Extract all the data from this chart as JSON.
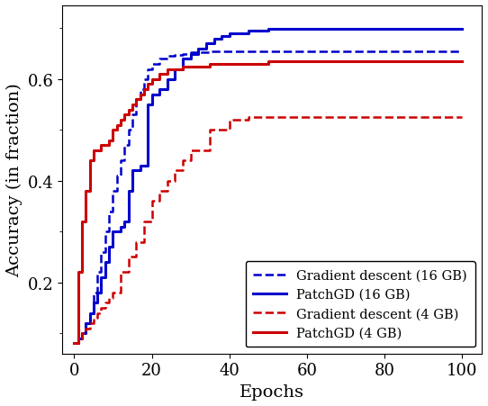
{
  "title": "",
  "xlabel": "Epochs",
  "ylabel": "Accuracy (in fraction)",
  "xlim": [
    -3,
    105
  ],
  "ylim": [
    0.06,
    0.745
  ],
  "xticks": [
    0,
    20,
    40,
    60,
    80,
    100
  ],
  "yticks": [
    0.2,
    0.4,
    0.6
  ],
  "legend_entries": [
    "Gradient descent (16 GB)",
    "PatchGD (16 GB)",
    "Gradient descent (4 GB)",
    "PatchGD (4 GB)"
  ],
  "gd_16gb": {
    "x": [
      0,
      1,
      2,
      3,
      4,
      5,
      6,
      7,
      8,
      9,
      10,
      11,
      12,
      13,
      14,
      15,
      16,
      17,
      18,
      19,
      20,
      22,
      24,
      26,
      28,
      30,
      35,
      40,
      50,
      60,
      70,
      80,
      90,
      100
    ],
    "y": [
      0.08,
      0.09,
      0.1,
      0.12,
      0.14,
      0.18,
      0.22,
      0.26,
      0.3,
      0.34,
      0.38,
      0.41,
      0.44,
      0.47,
      0.5,
      0.53,
      0.56,
      0.58,
      0.6,
      0.62,
      0.63,
      0.64,
      0.645,
      0.648,
      0.65,
      0.652,
      0.655,
      0.655,
      0.655,
      0.655,
      0.655,
      0.655,
      0.655,
      0.655
    ],
    "color": "#0000cc",
    "linestyle": "dashed",
    "linewidth": 1.8
  },
  "patchgd_16gb": {
    "x": [
      0,
      1,
      2,
      3,
      4,
      5,
      6,
      7,
      8,
      9,
      10,
      11,
      12,
      13,
      14,
      15,
      16,
      17,
      18,
      19,
      20,
      22,
      24,
      26,
      28,
      30,
      32,
      34,
      36,
      38,
      40,
      45,
      50,
      55,
      60,
      70,
      80,
      90,
      100
    ],
    "y": [
      0.08,
      0.09,
      0.1,
      0.12,
      0.14,
      0.16,
      0.18,
      0.21,
      0.24,
      0.27,
      0.3,
      0.3,
      0.31,
      0.32,
      0.38,
      0.42,
      0.42,
      0.43,
      0.43,
      0.55,
      0.57,
      0.58,
      0.6,
      0.62,
      0.64,
      0.65,
      0.66,
      0.67,
      0.68,
      0.685,
      0.69,
      0.695,
      0.698,
      0.698,
      0.698,
      0.698,
      0.698,
      0.698,
      0.698
    ],
    "color": "#0000cc",
    "linestyle": "solid",
    "linewidth": 2.2
  },
  "gd_4gb": {
    "x": [
      0,
      1,
      2,
      3,
      4,
      5,
      6,
      7,
      8,
      9,
      10,
      12,
      14,
      16,
      18,
      20,
      22,
      24,
      26,
      28,
      30,
      35,
      40,
      45,
      50,
      55,
      60,
      70,
      80,
      90,
      100
    ],
    "y": [
      0.08,
      0.09,
      0.1,
      0.11,
      0.12,
      0.13,
      0.14,
      0.15,
      0.16,
      0.17,
      0.18,
      0.22,
      0.25,
      0.28,
      0.32,
      0.36,
      0.38,
      0.4,
      0.42,
      0.44,
      0.46,
      0.5,
      0.52,
      0.525,
      0.525,
      0.525,
      0.525,
      0.525,
      0.525,
      0.525,
      0.525
    ],
    "color": "#cc0000",
    "linestyle": "dashed",
    "linewidth": 1.8
  },
  "patchgd_4gb": {
    "x": [
      0,
      1,
      2,
      3,
      4,
      5,
      6,
      7,
      8,
      9,
      10,
      11,
      12,
      13,
      14,
      15,
      16,
      17,
      18,
      19,
      20,
      22,
      24,
      26,
      28,
      30,
      35,
      40,
      50,
      60,
      70,
      80,
      90,
      100
    ],
    "y": [
      0.08,
      0.22,
      0.32,
      0.38,
      0.44,
      0.46,
      0.46,
      0.47,
      0.47,
      0.48,
      0.5,
      0.51,
      0.52,
      0.53,
      0.54,
      0.55,
      0.56,
      0.57,
      0.58,
      0.59,
      0.6,
      0.61,
      0.62,
      0.62,
      0.625,
      0.625,
      0.63,
      0.63,
      0.635,
      0.635,
      0.635,
      0.635,
      0.635,
      0.635
    ],
    "color": "#cc0000",
    "linestyle": "solid",
    "linewidth": 2.2
  },
  "background_color": "#ffffff",
  "legend_fontsize": 10.5,
  "axis_fontsize": 14,
  "tick_fontsize": 13
}
